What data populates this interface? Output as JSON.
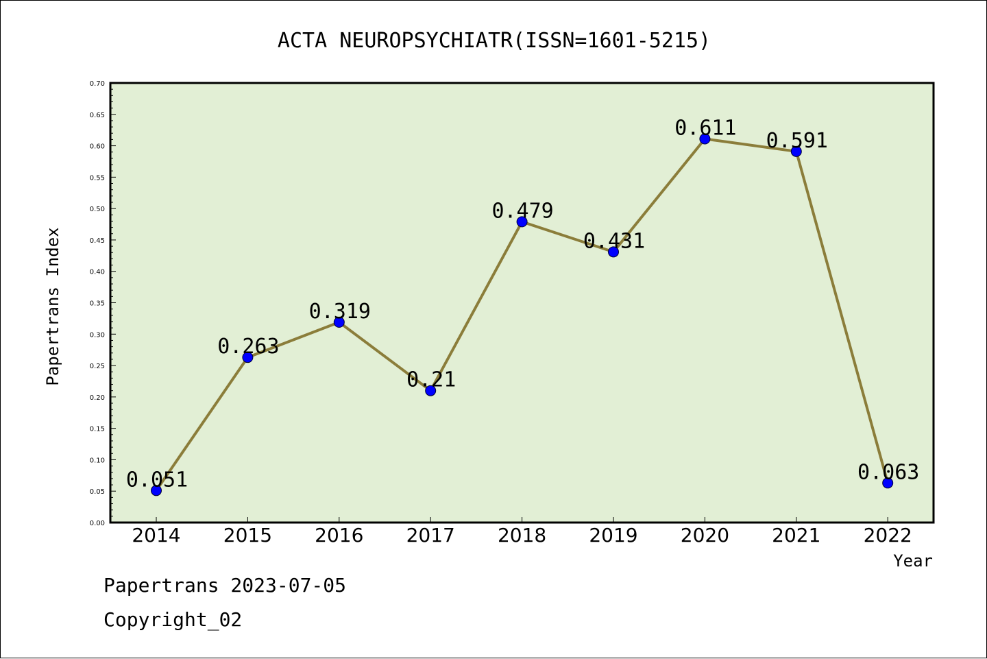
{
  "chart_data": {
    "type": "line",
    "title": "ACTA NEUROPSYCHIATR(ISSN=1601-5215)",
    "xlabel": "Year",
    "ylabel": "Papertrans Index",
    "categories": [
      "2014",
      "2015",
      "2016",
      "2017",
      "2018",
      "2019",
      "2020",
      "2021",
      "2022"
    ],
    "values": [
      0.051,
      0.263,
      0.319,
      0.21,
      0.479,
      0.431,
      0.611,
      0.591,
      0.063
    ],
    "data_labels": [
      "0.051",
      "0.263",
      "0.319",
      "0.21",
      "0.479",
      "0.431",
      "0.611",
      "0.591",
      "0.063"
    ],
    "ylim": [
      0,
      0.7
    ],
    "yticks": [
      "0.00",
      "0.05",
      "0.10",
      "0.15",
      "0.20",
      "0.25",
      "0.30",
      "0.35",
      "0.40",
      "0.45",
      "0.50",
      "0.55",
      "0.60",
      "0.65",
      "0.70"
    ],
    "grid": false,
    "colors": {
      "plot_background": "#e2efd5",
      "line": "#8b7d3a",
      "marker": "#0000ff"
    }
  },
  "footer": {
    "date_line": "Papertrans 2023-07-05",
    "copyright_line": "Copyright_02"
  }
}
